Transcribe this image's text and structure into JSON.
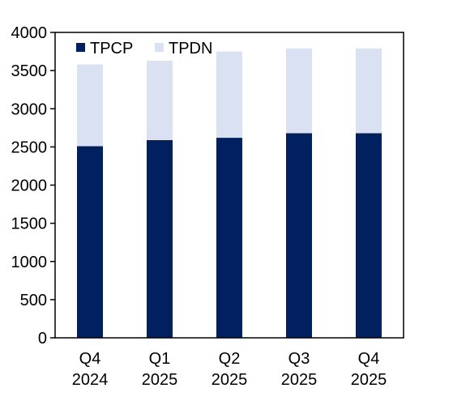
{
  "chart_data": {
    "type": "bar",
    "stacked": true,
    "categories": [
      [
        "Q4",
        "2024"
      ],
      [
        "Q1",
        "2025"
      ],
      [
        "Q2",
        "2025"
      ],
      [
        "Q3",
        "2025"
      ],
      [
        "Q4",
        "2025"
      ]
    ],
    "series": [
      {
        "name": "TPCP",
        "values": [
          2510,
          2590,
          2620,
          2680,
          2680
        ],
        "color": "#002060"
      },
      {
        "name": "TPDN",
        "values": [
          1070,
          1040,
          1130,
          1110,
          1110
        ],
        "color": "#dae1f3"
      }
    ],
    "ylim": [
      0,
      4000
    ],
    "yticks": [
      0,
      500,
      1000,
      1500,
      2000,
      2500,
      3000,
      3500,
      4000
    ],
    "grid": false,
    "legend_position": "top-left",
    "title": "",
    "xlabel": "",
    "ylabel": ""
  }
}
